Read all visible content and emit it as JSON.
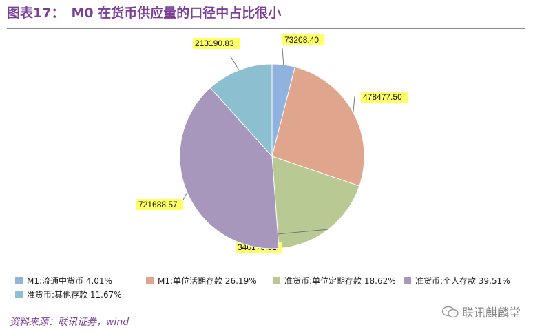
{
  "header": {
    "figure_label": "图表17：",
    "title_text": "M0 在货币供应量的口径中占比很小"
  },
  "source": "资料来源：联讯证券，wind",
  "watermark": "联讯麒麟堂",
  "chart_data": {
    "type": "pie",
    "start_angle_deg": 0,
    "direction": "clockwise",
    "slices": [
      {
        "name": "M1:流通中货币",
        "value": 73208.4,
        "label": "73208.40",
        "percent_label": "4.01%",
        "color": "#8fb3de"
      },
      {
        "name": "M1:单位活期存款",
        "value": 478477.5,
        "label": "478477.50",
        "percent_label": "26.19%",
        "color": "#e0a58d"
      },
      {
        "name": "准货币:单位定期存款",
        "value": 340178.91,
        "label": "340178.91",
        "percent_label": "18.62%",
        "color": "#b8c993"
      },
      {
        "name": "准货币:个人存款",
        "value": 721688.57,
        "label": "721688.57",
        "percent_label": "39.51%",
        "color": "#a797bd"
      },
      {
        "name": "准货币:其他存款",
        "value": 213190.83,
        "label": "213190.83",
        "percent_label": "11.67%",
        "color": "#8cbfcf"
      }
    ],
    "data_label_style": {
      "background": "#ffff66",
      "leader_line_color": "#777777"
    },
    "legend_position": "bottom"
  }
}
